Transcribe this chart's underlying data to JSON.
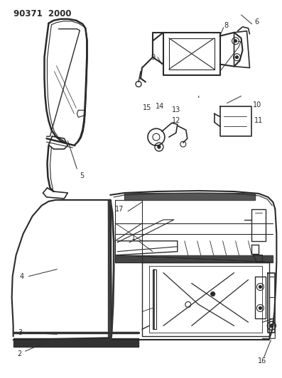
{
  "title": "90371  2000",
  "bg_color": "#ffffff",
  "line_color": "#2a2a2a",
  "title_fontsize": 8.5,
  "label_fontsize": 7.0,
  "fig_width": 3.97,
  "fig_height": 5.33,
  "dpi": 100
}
